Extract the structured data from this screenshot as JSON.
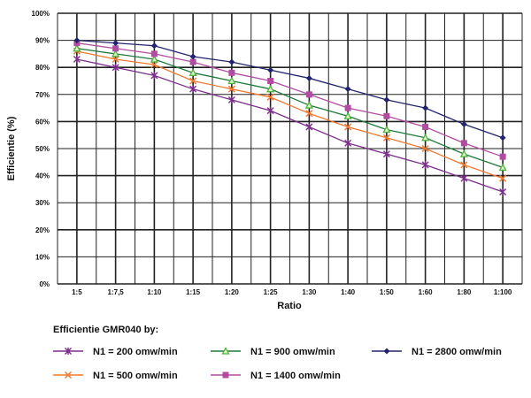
{
  "chart_data": {
    "type": "line",
    "title": "",
    "xlabel": "Ratio",
    "ylabel": "Efficientie (%)",
    "ylim": [
      0,
      100
    ],
    "yticks": [
      "0%",
      "10%",
      "20%",
      "30%",
      "40%",
      "50%",
      "60%",
      "70%",
      "80%",
      "90%",
      "100%"
    ],
    "categories": [
      "1:5",
      "1:7,5",
      "1:10",
      "1:15",
      "1:20",
      "1:25",
      "1:30",
      "1:40",
      "1:50",
      "1:60",
      "1:80",
      "1:100"
    ],
    "grid": true,
    "legend": {
      "title": "Efficientie GMR040 by:",
      "placement": "bottom"
    },
    "series": [
      {
        "name": "N1 = 200 omw/min",
        "marker": "asterisk",
        "color": "#7b2d8b",
        "values": [
          83,
          80,
          77,
          72,
          68,
          64,
          58,
          52,
          48,
          44,
          39,
          34
        ]
      },
      {
        "name": "N1 = 500 omw/min",
        "marker": "x",
        "color": "#f07a32",
        "values": [
          86,
          83,
          81,
          75,
          72,
          69,
          63,
          58,
          54,
          50,
          44,
          39
        ]
      },
      {
        "name": "N1 = 900 omw/min",
        "marker": "triangle",
        "color": "#1f7a3a",
        "values": [
          87,
          85,
          83,
          78,
          75,
          72,
          66,
          62,
          57,
          54,
          48,
          43
        ]
      },
      {
        "name": "N1 = 1400 omw/min",
        "marker": "square",
        "color": "#b24ca2",
        "values": [
          89,
          87,
          85,
          82,
          78,
          75,
          70,
          65,
          62,
          58,
          52,
          47
        ]
      },
      {
        "name": "N1 = 2800 omw/min",
        "marker": "diamond",
        "color": "#24246e",
        "values": [
          90,
          89,
          88,
          84,
          82,
          79,
          76,
          72,
          68,
          65,
          59,
          54
        ]
      }
    ]
  }
}
